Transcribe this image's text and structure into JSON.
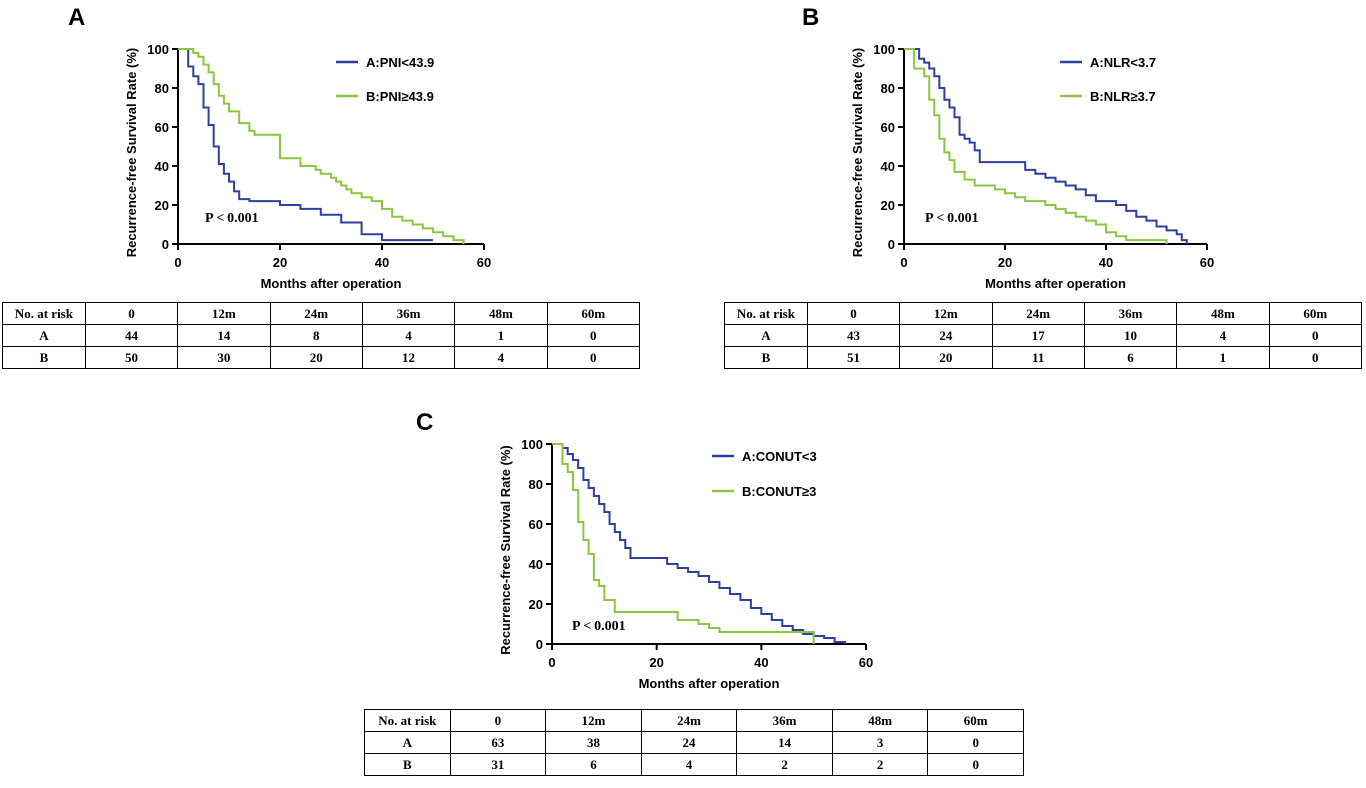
{
  "colors": {
    "group_a": "#2e3f9e",
    "group_b": "#8cc63f",
    "axis": "#000000"
  },
  "panels": [
    {
      "letter": "A",
      "chart_data": {
        "type": "line",
        "step": true,
        "xlabel": "Months after operation",
        "ylabel": "Recurrence-free Survival Rate (%)",
        "xlim": [
          0,
          60
        ],
        "ylim": [
          0,
          100
        ],
        "xticks": [
          0,
          20,
          40,
          60
        ],
        "yticks": [
          0,
          20,
          40,
          60,
          80,
          100
        ],
        "annotation": "P < 0.001",
        "series": [
          {
            "name": "A:PNI<43.9",
            "x": [
              0,
              2,
              3,
              4,
              5,
              6,
              7,
              8,
              9,
              10,
              11,
              12,
              14,
              20,
              24,
              28,
              32,
              36,
              40,
              46,
              50
            ],
            "y": [
              100,
              91,
              86,
              82,
              70,
              61,
              50,
              41,
              36,
              32,
              27,
              23,
              22,
              20,
              18,
              15,
              11,
              5,
              2,
              2,
              2
            ]
          },
          {
            "name": "B:PNI≥43.9",
            "x": [
              0,
              3,
              4,
              5,
              6,
              7,
              8,
              9,
              10,
              12,
              14,
              15,
              20,
              24,
              27,
              28,
              30,
              31,
              32,
              33,
              34,
              36,
              38,
              40,
              42,
              44,
              46,
              48,
              50,
              52,
              54,
              56
            ],
            "y": [
              100,
              98,
              96,
              92,
              88,
              82,
              76,
              72,
              68,
              62,
              58,
              56,
              44,
              40,
              38,
              36,
              34,
              32,
              30,
              28,
              26,
              24,
              22,
              18,
              14,
              12,
              10,
              8,
              6,
              4,
              2,
              0
            ]
          }
        ]
      },
      "risk_table": {
        "headers": [
          "No. at risk",
          "0",
          "12m",
          "24m",
          "36m",
          "48m",
          "60m"
        ],
        "rows": [
          [
            "A",
            "44",
            "14",
            "8",
            "4",
            "1",
            "0"
          ],
          [
            "B",
            "50",
            "30",
            "20",
            "12",
            "4",
            "0"
          ]
        ]
      }
    },
    {
      "letter": "B",
      "chart_data": {
        "type": "line",
        "step": true,
        "xlabel": "Months after operation",
        "ylabel": "Recurrence-free Survival Rate (%)",
        "xlim": [
          0,
          60
        ],
        "ylim": [
          0,
          100
        ],
        "xticks": [
          0,
          20,
          40,
          60
        ],
        "yticks": [
          0,
          20,
          40,
          60,
          80,
          100
        ],
        "annotation": "P < 0.001",
        "series": [
          {
            "name": "A:NLR<3.7",
            "x": [
              0,
              3,
              4,
              5,
              6,
              7,
              8,
              9,
              10,
              11,
              12,
              13,
              14,
              15,
              20,
              24,
              26,
              28,
              30,
              32,
              34,
              36,
              38,
              40,
              42,
              44,
              46,
              48,
              50,
              52,
              54,
              55,
              56
            ],
            "y": [
              100,
              95,
              93,
              90,
              86,
              80,
              74,
              70,
              65,
              56,
              54,
              52,
              48,
              42,
              42,
              38,
              36,
              34,
              32,
              30,
              28,
              25,
              22,
              22,
              20,
              17,
              14,
              12,
              9,
              7,
              5,
              2,
              0
            ]
          },
          {
            "name": "B:NLR≥3.7",
            "x": [
              0,
              2,
              4,
              5,
              6,
              7,
              8,
              9,
              10,
              12,
              14,
              18,
              20,
              22,
              24,
              28,
              30,
              32,
              34,
              36,
              38,
              40,
              42,
              44,
              46,
              48,
              50,
              52
            ],
            "y": [
              100,
              90,
              86,
              74,
              66,
              54,
              47,
              43,
              37,
              33,
              30,
              28,
              26,
              24,
              22,
              20,
              18,
              16,
              14,
              12,
              10,
              6,
              4,
              2,
              2,
              2,
              2,
              0
            ]
          }
        ]
      },
      "risk_table": {
        "headers": [
          "No. at risk",
          "0",
          "12m",
          "24m",
          "36m",
          "48m",
          "60m"
        ],
        "rows": [
          [
            "A",
            "43",
            "24",
            "17",
            "10",
            "4",
            "0"
          ],
          [
            "B",
            "51",
            "20",
            "11",
            "6",
            "1",
            "0"
          ]
        ]
      }
    },
    {
      "letter": "C",
      "chart_data": {
        "type": "line",
        "step": true,
        "xlabel": "Months after operation",
        "ylabel": "Recurrence-free Survival Rate (%)",
        "xlim": [
          0,
          60
        ],
        "ylim": [
          0,
          100
        ],
        "xticks": [
          0,
          20,
          40,
          60
        ],
        "yticks": [
          0,
          20,
          40,
          60,
          80,
          100
        ],
        "annotation": "P < 0.001",
        "series": [
          {
            "name": "A:CONUT<3",
            "x": [
              0,
              2,
              3,
              4,
              5,
              6,
              7,
              8,
              9,
              10,
              11,
              12,
              13,
              14,
              15,
              20,
              22,
              24,
              26,
              28,
              30,
              32,
              34,
              36,
              38,
              40,
              42,
              44,
              46,
              48,
              50,
              52,
              54,
              56
            ],
            "y": [
              100,
              98,
              95,
              92,
              88,
              82,
              78,
              74,
              70,
              66,
              60,
              56,
              52,
              48,
              43,
              43,
              40,
              38,
              36,
              34,
              31,
              28,
              25,
              22,
              18,
              15,
              12,
              9,
              7,
              5,
              4,
              3,
              1,
              0
            ]
          },
          {
            "name": "B:CONUT≥3",
            "x": [
              0,
              2,
              3,
              4,
              5,
              6,
              7,
              8,
              9,
              10,
              12,
              20,
              24,
              26,
              28,
              30,
              32,
              34,
              36,
              40,
              45,
              48,
              50
            ],
            "y": [
              100,
              90,
              86,
              77,
              61,
              52,
              45,
              32,
              29,
              22,
              16,
              16,
              12,
              12,
              10,
              8,
              6,
              6,
              6,
              6,
              6,
              6,
              0
            ]
          }
        ]
      },
      "risk_table": {
        "headers": [
          "No. at risk",
          "0",
          "12m",
          "24m",
          "36m",
          "48m",
          "60m"
        ],
        "rows": [
          [
            "A",
            "63",
            "38",
            "24",
            "14",
            "3",
            "0"
          ],
          [
            "B",
            "31",
            "6",
            "4",
            "2",
            "2",
            "0"
          ]
        ]
      }
    }
  ]
}
